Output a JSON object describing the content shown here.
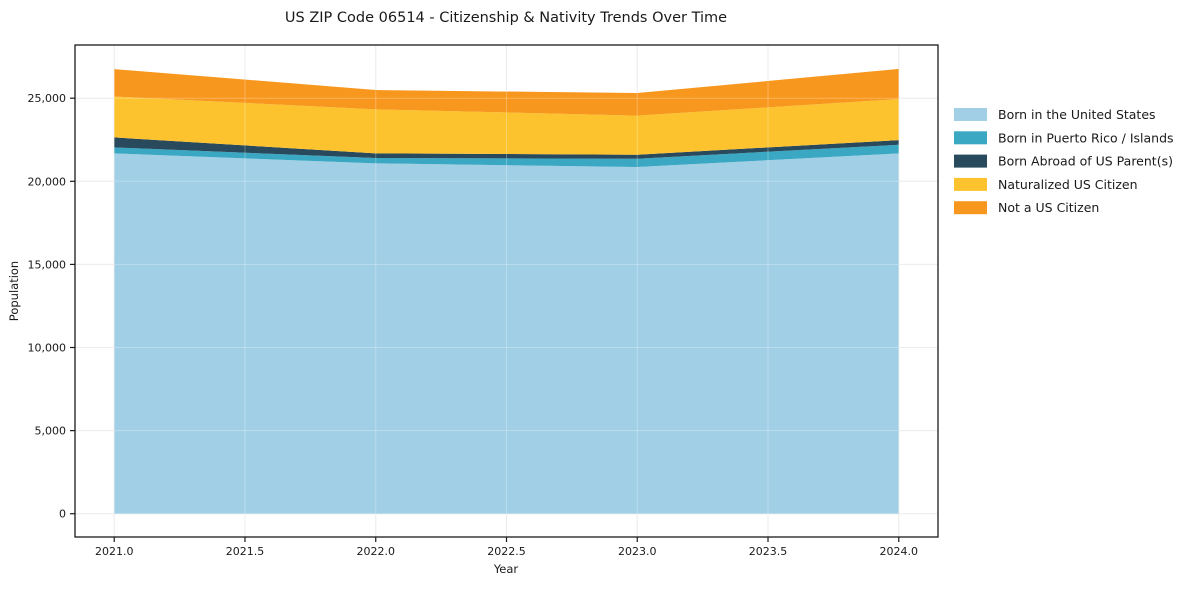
{
  "title": "US ZIP Code 06514 - Citizenship & Nativity Trends Over Time",
  "chart_data": {
    "type": "area",
    "stacked": true,
    "title": "US ZIP Code 06514 - Citizenship & Nativity Trends Over Time",
    "xlabel": "Year",
    "ylabel": "Population",
    "x": [
      2021,
      2022,
      2023,
      2024
    ],
    "series": [
      {
        "name": "Born in the United States",
        "color": "#a1cfe6",
        "values": [
          21680,
          21080,
          20860,
          21680
        ]
      },
      {
        "name": "Born in Puerto Rico / Islands",
        "color": "#3aa8c2",
        "values": [
          360,
          320,
          500,
          520
        ]
      },
      {
        "name": "Born Abroad of US Parent(s)",
        "color": "#29495c",
        "values": [
          600,
          280,
          240,
          280
        ]
      },
      {
        "name": "Naturalized US Citizen",
        "color": "#fdc32e",
        "values": [
          2460,
          2650,
          2350,
          2470
        ]
      },
      {
        "name": "Not a US Citizen",
        "color": "#f8971d",
        "values": [
          1650,
          1160,
          1360,
          1810
        ]
      }
    ],
    "totals": [
      26750,
      25490,
      25310,
      26760
    ],
    "x_tick_labels": [
      "2021.0",
      "2021.5",
      "2022.0",
      "2022.5",
      "2023.0",
      "2023.5",
      "2024.0"
    ],
    "x_tick_values": [
      2021,
      2021.5,
      2022,
      2022.5,
      2023,
      2023.5,
      2024
    ],
    "y_tick_labels": [
      "0",
      "5,000",
      "10,000",
      "15,000",
      "20,000",
      "25,000"
    ],
    "y_tick_values": [
      0,
      5000,
      10000,
      15000,
      20000,
      25000
    ],
    "xlim": [
      2020.85,
      2024.15
    ],
    "ylim": [
      -1400,
      28200
    ],
    "grid": true,
    "legend_position": "right"
  }
}
